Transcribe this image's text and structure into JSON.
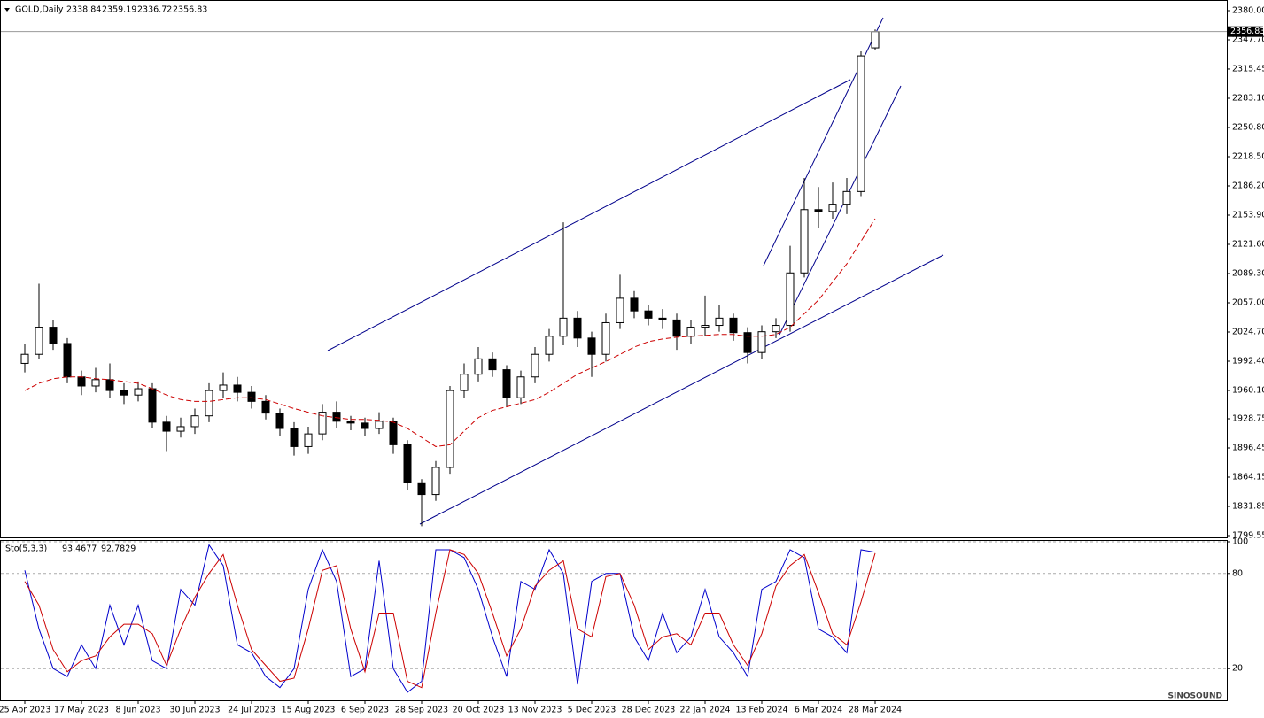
{
  "chart_data": [
    {
      "type": "candlestick",
      "title": "GOLD,Daily",
      "categories": [
        "25 Apr 2023",
        null,
        null,
        null,
        "17 May 2023",
        null,
        null,
        null,
        "8 Jun 2023",
        null,
        null,
        null,
        "30 Jun 2023",
        null,
        null,
        null,
        "24 Jul 2023",
        null,
        null,
        null,
        "15 Aug 2023",
        null,
        null,
        null,
        "6 Sep 2023",
        null,
        null,
        null,
        "28 Sep 2023",
        null,
        null,
        null,
        "20 Oct 2023",
        null,
        null,
        null,
        "13 Nov 2023",
        null,
        null,
        null,
        "5 Dec 2023",
        null,
        null,
        null,
        "28 Dec 2023",
        null,
        null,
        null,
        "22 Jan 2024",
        null,
        null,
        null,
        "13 Feb 2024",
        null,
        null,
        null,
        "6 Mar 2024",
        null,
        null,
        null,
        "28 Mar 2024"
      ],
      "open": [
        1990,
        2000,
        2030,
        2012,
        1975,
        1965,
        1972,
        1960,
        1955,
        1962,
        1925,
        1915,
        1920,
        1932,
        1960,
        1966,
        1958,
        1948,
        1935,
        1918,
        1898,
        1912,
        1936,
        1926,
        1924,
        1918,
        1926,
        1900,
        1858,
        1845,
        1875,
        1960,
        1978,
        1995,
        1983,
        1952,
        1975,
        2000,
        2020,
        2040,
        2018,
        2000,
        2035,
        2062,
        2048,
        2040,
        2038,
        2020,
        2030,
        2032,
        2040,
        2024,
        2002,
        2025,
        2032,
        2090,
        2160,
        2158,
        2166,
        2180,
        2338.84
      ],
      "high": [
        2012,
        2078,
        2038,
        2018,
        1982,
        1985,
        1990,
        1968,
        1970,
        1968,
        1932,
        1930,
        1940,
        1968,
        1980,
        1975,
        1965,
        1955,
        1940,
        1925,
        1920,
        1945,
        1948,
        1932,
        1930,
        1936,
        1930,
        1905,
        1862,
        1882,
        1965,
        1990,
        2008,
        2002,
        1988,
        1982,
        2008,
        2028,
        2146,
        2048,
        2025,
        2045,
        2088,
        2070,
        2055,
        2050,
        2045,
        2038,
        2065,
        2055,
        2045,
        2030,
        2032,
        2040,
        2120,
        2195,
        2185,
        2190,
        2195,
        2335,
        2359.19
      ],
      "low": [
        1980,
        1995,
        2005,
        1968,
        1955,
        1958,
        1952,
        1945,
        1948,
        1918,
        1893,
        1908,
        1912,
        1925,
        1952,
        1948,
        1940,
        1928,
        1910,
        1888,
        1890,
        1905,
        1918,
        1916,
        1910,
        1912,
        1890,
        1850,
        1810,
        1838,
        1868,
        1952,
        1970,
        1975,
        1942,
        1945,
        1968,
        1992,
        2010,
        2008,
        1975,
        1992,
        2028,
        2040,
        2032,
        2028,
        2005,
        2012,
        2020,
        2025,
        2015,
        1990,
        1995,
        2018,
        2025,
        2085,
        2140,
        2150,
        2155,
        2175,
        2336.72
      ],
      "close": [
        2000,
        2030,
        2012,
        1975,
        1965,
        1972,
        1960,
        1955,
        1962,
        1925,
        1915,
        1920,
        1932,
        1960,
        1966,
        1958,
        1948,
        1935,
        1918,
        1898,
        1912,
        1936,
        1926,
        1924,
        1918,
        1926,
        1900,
        1858,
        1845,
        1875,
        1960,
        1978,
        1995,
        1983,
        1952,
        1975,
        2000,
        2020,
        2040,
        2018,
        2000,
        2035,
        2062,
        2048,
        2040,
        2038,
        2020,
        2030,
        2032,
        2040,
        2024,
        2002,
        2025,
        2032,
        2090,
        2160,
        2158,
        2166,
        2180,
        2330,
        2356.83
      ],
      "ma": {
        "color": "#cc0000",
        "values": [
          1960,
          1968,
          1973,
          1975,
          1975,
          1973,
          1972,
          1970,
          1968,
          1962,
          1955,
          1950,
          1948,
          1948,
          1950,
          1952,
          1952,
          1950,
          1945,
          1940,
          1936,
          1932,
          1930,
          1928,
          1928,
          1927,
          1925,
          1918,
          1908,
          1898,
          1900,
          1915,
          1930,
          1938,
          1942,
          1946,
          1950,
          1958,
          1968,
          1978,
          1985,
          1992,
          2000,
          2008,
          2014,
          2017,
          2019,
          2020,
          2021,
          2022,
          2022,
          2020,
          2020,
          2022,
          2030,
          2045,
          2060,
          2080,
          2100,
          2125,
          2150
        ]
      },
      "up_color": "#ffffff",
      "down_color": "#000000",
      "ylim": [
        1797.6,
        2389.8
      ],
      "yticks": [
        {
          "value": 2380,
          "label": "2380.00"
        },
        {
          "value": 2347.7,
          "label": "2347.70"
        },
        {
          "value": 2315.45,
          "label": "2315.45"
        },
        {
          "value": 2283.1,
          "label": "2283.10"
        },
        {
          "value": 2250.8,
          "label": "2250.80"
        },
        {
          "value": 2218.5,
          "label": "2218.50"
        },
        {
          "value": 2186.2,
          "label": "2186.20"
        },
        {
          "value": 2153.9,
          "label": "2153.90"
        },
        {
          "value": 2121.6,
          "label": "2121.60"
        },
        {
          "value": 2089.3,
          "label": "2089.30"
        },
        {
          "value": 2057,
          "label": "2057.00"
        },
        {
          "value": 2024.7,
          "label": "2024.70"
        },
        {
          "value": 1992.4,
          "label": "1992.40"
        },
        {
          "value": 1960.1,
          "label": "1960.10"
        },
        {
          "value": 1928.75,
          "label": "1928.75"
        },
        {
          "value": 1896.45,
          "label": "1896.45"
        },
        {
          "value": 1864.15,
          "label": "1864.15"
        },
        {
          "value": 1831.85,
          "label": "1831.85"
        },
        {
          "value": 1799.55,
          "label": "1799.55"
        }
      ],
      "grid": false
    },
    {
      "type": "line",
      "title": "Sto(5,3,3)",
      "series": [
        {
          "color": "#0000cc",
          "values": [
            82,
            45,
            20,
            15,
            35,
            20,
            60,
            35,
            60,
            25,
            20,
            70,
            60,
            98,
            85,
            35,
            30,
            15,
            8,
            20,
            70,
            95,
            75,
            15,
            20,
            88,
            20,
            5,
            12,
            95,
            95,
            90,
            70,
            40,
            15,
            75,
            70,
            95,
            80,
            10,
            75,
            80,
            80,
            40,
            25,
            55,
            30,
            40,
            70,
            40,
            30,
            15,
            70,
            75,
            95,
            90,
            45,
            40,
            30,
            95,
            93.4677
          ]
        },
        {
          "color": "#cc0000",
          "values": [
            75,
            60,
            32,
            18,
            25,
            28,
            40,
            48,
            48,
            42,
            22,
            45,
            65,
            80,
            92,
            60,
            32,
            22,
            12,
            14,
            45,
            82,
            85,
            45,
            18,
            55,
            55,
            12,
            8,
            55,
            95,
            92,
            80,
            55,
            28,
            45,
            72,
            82,
            88,
            45,
            40,
            78,
            80,
            60,
            32,
            40,
            42,
            35,
            55,
            55,
            35,
            22,
            42,
            72,
            85,
            92,
            68,
            42,
            35,
            62,
            92.7829
          ]
        }
      ],
      "ylim": [
        0,
        100
      ],
      "yticks": [
        100,
        80,
        20
      ],
      "grid": true
    }
  ],
  "watermark": "SINOSOUND"
}
